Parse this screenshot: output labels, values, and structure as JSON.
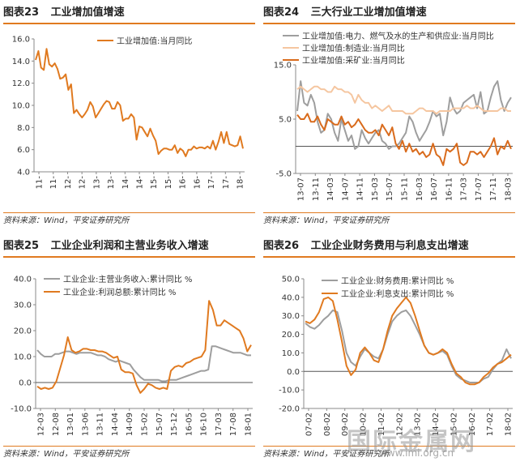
{
  "panels": [
    {
      "fig": "图表23",
      "title": "工业增加值增速",
      "source": "资料来源：Wind，平安证券研究所"
    },
    {
      "fig": "图表24",
      "title": "三大行业工业增加值增速",
      "source": "资料来源：Wind，平安证券研究所"
    },
    {
      "fig": "图表25",
      "title": "工业企业利润和主营业务收入增速",
      "source": "资料来源：Wind，平安证券研究所"
    },
    {
      "fig": "图表26",
      "title": "工业企业财务费用与利息支出增速",
      "source": "资料来源：Wind，平安证券研究所"
    }
  ],
  "watermark": {
    "text": "国际金属网",
    "url": "www.imi.org.cn"
  },
  "chart_data": [
    {
      "type": "line",
      "ylim": [
        4.0,
        16.0
      ],
      "yticks": [
        "4.0",
        "6.0",
        "8.0",
        "10.0",
        "12.0",
        "14.0",
        "16.0"
      ],
      "xticks": [
        "11-",
        "11-",
        "12-",
        "12-",
        "13-",
        "13-",
        "14-",
        "14-",
        "15-",
        "15-",
        "16-",
        "16-",
        "17-",
        "17-",
        "18-"
      ],
      "series": [
        {
          "name": "工业增加值:当月同比",
          "color": "#e07a20",
          "values": [
            14.1,
            14.9,
            13.4,
            13.2,
            15.1,
            13.7,
            13.5,
            13.8,
            13.3,
            12.4,
            12.5,
            12.8,
            11.4,
            11.9,
            9.3,
            9.6,
            9.2,
            8.9,
            9.2,
            9.6,
            10.3,
            9.9,
            8.9,
            9.3,
            9.7,
            10.1,
            10.4,
            10.3,
            9.7,
            9.7,
            10.3,
            10.0,
            8.6,
            8.8,
            8.8,
            9.2,
            8.9,
            6.9,
            8.1,
            8.0,
            7.6,
            7.2,
            7.9,
            7.3,
            6.8,
            5.6,
            5.9,
            6.1,
            6.1,
            6.0,
            6.0,
            6.4,
            5.7,
            6.1,
            5.9,
            5.4,
            6.0,
            6.0,
            6.3,
            6.1,
            6.2,
            6.2,
            6.1,
            6.3,
            6.1,
            6.8,
            6.0,
            6.7,
            7.6,
            6.6,
            7.6,
            6.5,
            6.4,
            6.3,
            6.4,
            7.2,
            6.1
          ]
        }
      ]
    },
    {
      "type": "line",
      "ylim": [
        -5.0,
        15.0
      ],
      "yticks": [
        "-5.0",
        "5.0",
        "15.0"
      ],
      "xticks": [
        "13-07",
        "13-11",
        "14-03",
        "14-07",
        "14-11",
        "15-03",
        "15-07",
        "15-11",
        "16-03",
        "16-07",
        "16-11",
        "17-03",
        "17-07",
        "17-11",
        "18-03"
      ],
      "series": [
        {
          "name": "工业增加值:电力、燃气及水的生产和供应业:当月同比",
          "color": "#9e9e9e",
          "values": [
            6.5,
            12.0,
            8.0,
            7.5,
            9.5,
            8.0,
            4.5,
            2.5,
            3.0,
            6.0,
            5.0,
            2.5,
            1.0,
            5.0,
            3.0,
            1.0,
            2.0,
            -0.5,
            0.0,
            3.0,
            1.5,
            0.5,
            1.5,
            2.5,
            3.0,
            1.0,
            0.5,
            -0.5,
            0.0,
            0.0,
            0.5,
            1.5,
            2.5,
            5.5,
            4.5,
            2.5,
            1.0,
            2.0,
            3.0,
            4.5,
            6.5,
            5.5,
            6.0,
            2.0,
            4.5,
            9.0,
            7.0,
            6.0,
            6.5,
            8.0,
            8.5,
            9.0,
            9.5,
            7.0,
            10.0,
            6.0,
            6.5,
            9.0,
            11.0,
            12.0,
            8.5,
            6.5,
            8.0,
            9.0
          ]
        },
        {
          "name": "工业增加值:制造业:当月同比",
          "color": "#f5c6a0",
          "values": [
            10.5,
            11.0,
            10.5,
            10.0,
            10.5,
            11.0,
            11.0,
            10.5,
            10.5,
            10.0,
            10.0,
            11.0,
            10.5,
            10.5,
            10.0,
            10.0,
            9.5,
            8.0,
            9.5,
            8.5,
            8.0,
            8.0,
            7.0,
            7.5,
            7.0,
            6.5,
            7.0,
            7.5,
            6.5,
            6.5,
            6.5,
            6.5,
            6.0,
            6.0,
            6.0,
            6.5,
            7.0,
            7.0,
            6.5,
            6.5,
            6.5,
            6.0,
            6.5,
            6.5,
            6.5,
            6.5,
            7.0,
            7.0,
            7.0,
            7.0,
            7.5,
            7.0,
            7.0,
            7.5,
            7.0,
            6.5,
            6.5,
            6.5,
            6.5,
            6.5,
            7.0,
            7.0,
            6.5,
            6.5
          ]
        },
        {
          "name": "工业增加值:采矿业:当月同比",
          "color": "#d96b1c",
          "values": [
            5.8,
            5.0,
            5.0,
            6.0,
            4.5,
            4.5,
            5.5,
            4.0,
            3.0,
            5.0,
            4.5,
            4.0,
            4.0,
            5.5,
            4.0,
            4.5,
            3.5,
            4.0,
            5.0,
            4.0,
            3.0,
            2.5,
            2.5,
            3.0,
            2.0,
            4.0,
            3.0,
            2.0,
            3.5,
            0.5,
            -0.5,
            1.0,
            -1.0,
            0.5,
            -1.0,
            -0.5,
            -1.5,
            -1.0,
            -2.0,
            -1.5,
            0.5,
            -1.5,
            -2.0,
            -3.5,
            -0.5,
            -1.0,
            -0.5,
            0.5,
            -3.0,
            -3.5,
            -3.0,
            -1.0,
            -1.0,
            -1.5,
            -1.0,
            -2.0,
            -1.0,
            0.0,
            1.5,
            -1.5,
            0.0,
            -0.5,
            1.0,
            -0.5
          ]
        }
      ]
    },
    {
      "type": "line",
      "ylim": [
        -10.0,
        40.0
      ],
      "yticks": [
        "-10.0",
        "0.0",
        "10.0",
        "20.0",
        "30.0",
        "40.0"
      ],
      "xticks": [
        "12-03",
        "12-08",
        "13-01",
        "13-06",
        "13-11",
        "14-04",
        "14-09",
        "15-02",
        "15-07",
        "15-12",
        "16-05",
        "16-10",
        "17-03",
        "17-08",
        "18-01"
      ],
      "series": [
        {
          "name": "工业企业:主营业务收入:累计同比 %",
          "color": "#9e9e9e",
          "values": [
            12.5,
            11.0,
            10.0,
            10.0,
            10.0,
            11.0,
            11.0,
            11.5,
            12.0,
            12.0,
            11.5,
            11.0,
            11.5,
            11.5,
            11.5,
            11.5,
            11.0,
            10.5,
            10.5,
            10.0,
            9.0,
            8.5,
            8.0,
            8.5,
            8.0,
            7.5,
            7.0,
            5.0,
            3.5,
            2.0,
            1.0,
            1.0,
            1.0,
            1.0,
            1.0,
            0.5,
            0.5,
            1.0,
            1.0,
            1.0,
            1.5,
            2.0,
            2.5,
            3.0,
            3.5,
            4.0,
            4.5,
            4.5,
            5.0,
            14.0,
            14.0,
            13.5,
            13.0,
            12.5,
            12.0,
            11.5,
            11.5,
            11.5,
            11.0,
            10.5,
            10.5
          ]
        },
        {
          "name": "工业企业:利润总额:累计同比 %",
          "color": "#e07a20",
          "values": [
            -1.5,
            -2.5,
            -2.0,
            -2.5,
            -2.0,
            0.5,
            5.5,
            10.5,
            17.5,
            12.5,
            11.5,
            12.0,
            13.0,
            13.0,
            12.5,
            12.5,
            12.0,
            12.0,
            11.5,
            10.5,
            9.5,
            10.0,
            5.0,
            4.0,
            4.0,
            3.5,
            -1.0,
            -4.0,
            -2.5,
            -0.5,
            -1.0,
            -2.0,
            -2.5,
            -2.0,
            -2.5,
            4.5,
            6.0,
            6.5,
            6.0,
            7.5,
            8.0,
            9.0,
            9.5,
            10.0,
            12.5,
            31.5,
            28.0,
            22.0,
            22.0,
            24.0,
            23.0,
            22.0,
            21.0,
            20.0,
            17.0,
            12.0,
            14.5
          ]
        }
      ]
    },
    {
      "type": "line",
      "ylim": [
        -20.0,
        50.0
      ],
      "yticks": [
        "-20.0",
        "-10.0",
        "0.0",
        "10.0",
        "20.0",
        "30.0",
        "40.0",
        "50.0"
      ],
      "xticks": [
        "07-02",
        "08-02",
        "09-02",
        "10-02",
        "11-02",
        "12-02",
        "13-02",
        "14-02",
        "15-02",
        "16-02",
        "17-02",
        "18-02"
      ],
      "series": [
        {
          "name": "工业企业:财务费用:累计同比 %",
          "color": "#9e9e9e",
          "values": [
            26,
            24,
            23,
            25,
            28,
            30,
            33,
            32,
            22,
            10,
            5,
            3,
            8,
            12,
            10,
            8,
            7,
            12,
            20,
            27,
            30,
            32,
            33,
            30,
            25,
            20,
            14,
            10,
            9,
            10,
            11,
            9,
            3,
            -2,
            -4,
            -5,
            -6,
            -6,
            -6,
            -4,
            -3,
            1,
            4,
            6,
            12,
            7
          ]
        },
        {
          "name": "工业企业:利息支出:累计同比 %",
          "color": "#e07a20",
          "values": [
            27,
            26,
            28,
            32,
            39,
            40,
            38,
            28,
            16,
            3,
            -2,
            1,
            10,
            13,
            10,
            6,
            5,
            12,
            22,
            30,
            34,
            37,
            40,
            37,
            30,
            22,
            14,
            10,
            9,
            10,
            12,
            10,
            4,
            -1,
            -3,
            -6,
            -7,
            -7,
            -6,
            -3,
            -1,
            2,
            4,
            5,
            7,
            9
          ]
        }
      ]
    }
  ]
}
